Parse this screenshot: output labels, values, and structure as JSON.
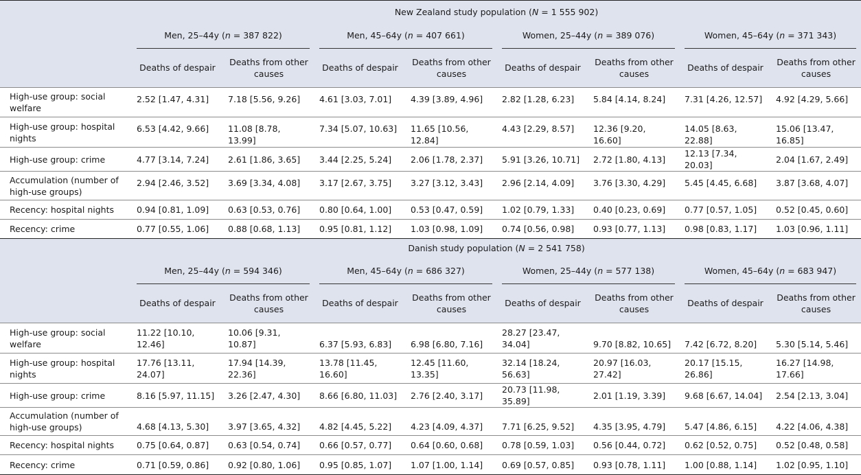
{
  "sections": [
    {
      "title": [
        "New Zealand study population (",
        "N",
        " = 1 555 902)"
      ],
      "groups": [
        [
          "Men, 25–44y (",
          "n",
          " = 387 822)"
        ],
        [
          "Men, 45–64y (",
          "n",
          " = 407 661)"
        ],
        [
          "Women, 25–44y (",
          "n",
          " = 389 076)"
        ],
        [
          "Women, 45–64y (",
          "n",
          " = 371 343)"
        ]
      ],
      "subheaders": [
        "Deaths of despair",
        "Deaths from other causes"
      ],
      "rows": [
        {
          "label": "High-use group: social welfare",
          "values": [
            "2.52 [1.47, 4.31]",
            "7.18 [5.56, 9.26]",
            "4.61 [3.03, 7.01]",
            "4.39 [3.89, 4.96]",
            "2.82 [1.28, 6.23]",
            "5.84 [4.14, 8.24]",
            "7.31 [4.26, 12.57]",
            "4.92 [4.29, 5.66]"
          ]
        },
        {
          "label": "High-use group: hospital nights",
          "values": [
            "6.53 [4.42, 9.66]",
            "11.08 [8.78, 13.99]",
            "7.34 [5.07, 10.63]",
            "11.65 [10.56, 12.84]",
            "4.43 [2.29, 8.57]",
            "12.36 [9.20, 16.60]",
            "14.05 [8.63, 22.88]",
            "15.06 [13.47, 16.85]"
          ]
        },
        {
          "label": "High-use group: crime",
          "values": [
            "4.77 [3.14, 7.24]",
            "2.61 [1.86, 3.65]",
            "3.44 [2.25, 5.24]",
            "2.06 [1.78, 2.37]",
            "5.91 [3.26, 10.71]",
            "2.72 [1.80, 4.13]",
            "12.13 [7.34, 20.03]",
            "2.04 [1.67, 2.49]"
          ]
        },
        {
          "label": "Accumulation (number of high-use groups)",
          "values": [
            "2.94 [2.46, 3.52]",
            "3.69 [3.34, 4.08]",
            "3.17 [2.67, 3.75]",
            "3.27 [3.12, 3.43]",
            "2.96 [2.14, 4.09]",
            "3.76 [3.30, 4.29]",
            "5.45 [4.45, 6.68]",
            "3.87 [3.68, 4.07]"
          ]
        },
        {
          "label": "Recency: hospital nights",
          "values": [
            "0.94 [0.81, 1.09]",
            "0.63 [0.53, 0.76]",
            "0.80 [0.64, 1.00]",
            "0.53 [0.47, 0.59]",
            "1.02 [0.79, 1.33]",
            "0.40 [0.23, 0.69]",
            "0.77 [0.57, 1.05]",
            "0.52 [0.45, 0.60]"
          ]
        },
        {
          "label": "Recency: crime",
          "values": [
            "0.77 [0.55, 1.06]",
            "0.88 [0.68, 1.13]",
            "0.95 [0.81, 1.12]",
            "1.03 [0.98, 1.09]",
            "0.74 [0.56, 0.98]",
            "0.93 [0.77, 1.13]",
            "0.98 [0.83, 1.17]",
            "1.03 [0.96, 1.11]"
          ]
        }
      ]
    },
    {
      "title": [
        "Danish study population (",
        "N",
        " = 2 541 758)"
      ],
      "groups": [
        [
          "Men, 25–44y (",
          "n",
          " = 594 346)"
        ],
        [
          "Men, 45–64y (",
          "n",
          " = 686 327)"
        ],
        [
          "Women, 25–44y (",
          "n",
          " = 577 138)"
        ],
        [
          "Women, 45–64y (",
          "n",
          " = 683 947)"
        ]
      ],
      "subheaders": [
        "Deaths of despair",
        "Deaths from other causes"
      ],
      "rows": [
        {
          "label": "High-use group: social welfare",
          "values": [
            "11.22 [10.10, 12.46]",
            "10.06 [9.31, 10.87]",
            "6.37 [5.93, 6.83]",
            "6.98 [6.80, 7.16]",
            "28.27 [23.47, 34.04]",
            "9.70 [8.82, 10.65]",
            "7.42 [6.72, 8.20]",
            "5.30 [5.14, 5.46]"
          ]
        },
        {
          "label": "High-use group: hospital nights",
          "values": [
            "17.76 [13.11, 24.07]",
            "17.94 [14.39, 22.36]",
            "13.78 [11.45, 16.60]",
            "12.45 [11.60, 13.35]",
            "32.14 [18.24, 56.63]",
            "20.97 [16.03, 27.42]",
            "20.17 [15.15, 26.86]",
            "16.27 [14.98, 17.66]"
          ]
        },
        {
          "label": "High-use group: crime",
          "values": [
            "8.16 [5.97, 11.15]",
            "3.26 [2.47, 4.30]",
            "8.66 [6.80, 11.03]",
            "2.76 [2.40, 3.17]",
            "20.73 [11.98, 35.89]",
            "2.01 [1.19, 3.39]",
            "9.68 [6.67, 14.04]",
            "2.54 [2.13, 3.04]"
          ]
        },
        {
          "label": "Accumulation (number of high-use groups)",
          "values": [
            "4.68 [4.13, 5.30]",
            "3.97 [3.65, 4.32]",
            "4.82 [4.45, 5.22]",
            "4.23 [4.09, 4.37]",
            "7.71 [6.25, 9.52]",
            "4.35 [3.95, 4.79]",
            "5.47 [4.86, 6.15]",
            "4.22 [4.06, 4.38]"
          ]
        },
        {
          "label": "Recency: hospital nights",
          "values": [
            "0.75 [0.64, 0.87]",
            "0.63 [0.54, 0.74]",
            "0.66 [0.57, 0.77]",
            "0.64 [0.60, 0.68]",
            "0.78 [0.59, 1.03]",
            "0.56 [0.44, 0.72]",
            "0.62 [0.52, 0.75]",
            "0.52 [0.48, 0.58]"
          ]
        },
        {
          "label": "Recency: crime",
          "values": [
            "0.71 [0.59, 0.86]",
            "0.92 [0.80, 1.06]",
            "0.95 [0.85, 1.07]",
            "1.07 [1.00, 1.14]",
            "0.69 [0.57, 0.85]",
            "0.93 [0.78, 1.11]",
            "1.00 [0.88, 1.14]",
            "1.02 [0.95, 1.10]"
          ]
        }
      ]
    }
  ]
}
